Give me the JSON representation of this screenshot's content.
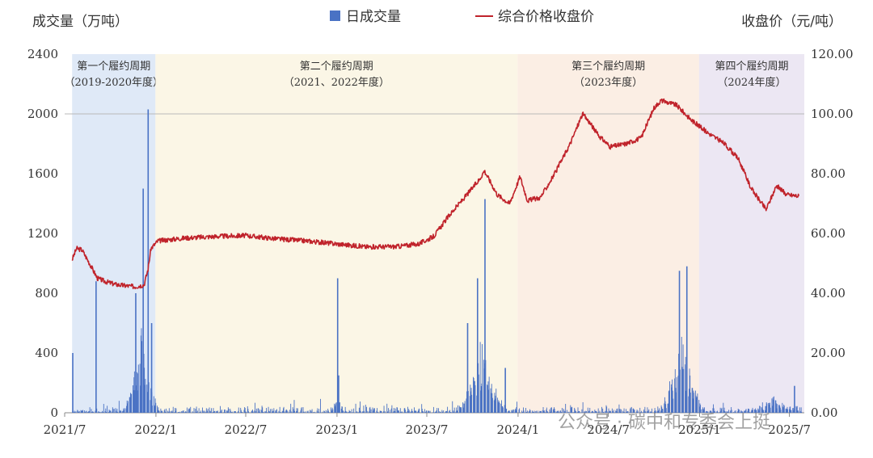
{
  "chart_data": {
    "type": "bar+line",
    "left_axis_title": "成交量（万吨）",
    "right_axis_title": "收盘价（元/吨）",
    "legend": {
      "bar_label": "日成交量",
      "line_label": "综合价格收盘价",
      "bar_color": "#4a72c4",
      "line_color": "#c0232b"
    },
    "x_ticks": [
      "2021/7",
      "2022/1",
      "2022/7",
      "2023/1",
      "2023/7",
      "2024/1",
      "2024/7",
      "2025/1",
      "2025/7"
    ],
    "y_left": {
      "min": 0,
      "max": 2400,
      "ticks": [
        0,
        400,
        800,
        1200,
        1600,
        2000,
        2400
      ]
    },
    "y_right": {
      "min": 0,
      "max": 120,
      "ticks": [
        "0.00",
        "20.00",
        "40.00",
        "60.00",
        "80.00",
        "100.00",
        "120.00"
      ]
    },
    "reference_line_right": 100,
    "periods": [
      {
        "line1": "第一个履约周期",
        "line2": "（2019-2020年度）",
        "start": "2021-07-16",
        "end": "2021-12-31",
        "color": "#dfe9f7"
      },
      {
        "line1": "第二个履约周期",
        "line2": "（2021、2022年度）",
        "start": "2021-12-31",
        "end": "2023-12-31",
        "color": "#fbf6e6"
      },
      {
        "line1": "第三个履约周期",
        "line2": "（2023年度）",
        "start": "2023-12-31",
        "end": "2024-12-31",
        "color": "#fbeee4"
      },
      {
        "line1": "第四个履约周期",
        "line2": "（2024年度）",
        "start": "2024-12-31",
        "end": "2025-07-31",
        "color": "#ece7f3"
      }
    ],
    "price_series": {
      "name": "综合价格收盘价",
      "points": [
        [
          "2021-07-16",
          51.2
        ],
        [
          "2021-07-25",
          55.0
        ],
        [
          "2021-08-05",
          54.5
        ],
        [
          "2021-08-20",
          50.0
        ],
        [
          "2021-09-05",
          45.0
        ],
        [
          "2021-09-20",
          44.0
        ],
        [
          "2021-10-10",
          43.0
        ],
        [
          "2021-11-01",
          42.5
        ],
        [
          "2021-11-20",
          42.2
        ],
        [
          "2021-12-08",
          42.8
        ],
        [
          "2021-12-16",
          48.0
        ],
        [
          "2021-12-22",
          55.0
        ],
        [
          "2022-01-05",
          57.5
        ],
        [
          "2022-02-01",
          58.0
        ],
        [
          "2022-03-01",
          58.5
        ],
        [
          "2022-05-01",
          59.0
        ],
        [
          "2022-07-01",
          59.3
        ],
        [
          "2022-09-01",
          58.2
        ],
        [
          "2022-11-01",
          57.5
        ],
        [
          "2023-01-01",
          56.5
        ],
        [
          "2023-03-01",
          55.5
        ],
        [
          "2023-05-01",
          55.6
        ],
        [
          "2023-06-15",
          56.5
        ],
        [
          "2023-07-15",
          59.0
        ],
        [
          "2023-08-15",
          66.0
        ],
        [
          "2023-09-15",
          72.0
        ],
        [
          "2023-10-15",
          78.0
        ],
        [
          "2023-10-25",
          81.0
        ],
        [
          "2023-11-20",
          73.0
        ],
        [
          "2023-12-15",
          70.0
        ],
        [
          "2024-01-05",
          79.0
        ],
        [
          "2024-01-20",
          71.0
        ],
        [
          "2024-02-15",
          72.0
        ],
        [
          "2024-03-15",
          80.0
        ],
        [
          "2024-04-15",
          90.0
        ],
        [
          "2024-05-10",
          100.0
        ],
        [
          "2024-05-25",
          97.0
        ],
        [
          "2024-06-10",
          93.0
        ],
        [
          "2024-07-05",
          89.0
        ],
        [
          "2024-08-05",
          90.0
        ],
        [
          "2024-09-05",
          92.0
        ],
        [
          "2024-10-01",
          102.0
        ],
        [
          "2024-10-15",
          104.5
        ],
        [
          "2024-11-15",
          103.0
        ],
        [
          "2024-12-15",
          98.0
        ],
        [
          "2025-01-15",
          94.0
        ],
        [
          "2025-02-20",
          90.0
        ],
        [
          "2025-03-20",
          85.0
        ],
        [
          "2025-04-15",
          75.0
        ],
        [
          "2025-05-15",
          68.0
        ],
        [
          "2025-06-05",
          76.0
        ],
        [
          "2025-06-25",
          73.0
        ],
        [
          "2025-07-20",
          72.5
        ]
      ]
    },
    "volume_spikes": [
      [
        "2021-07-16",
        400
      ],
      [
        "2021-09-01",
        880
      ],
      [
        "2021-11-20",
        800
      ],
      [
        "2021-12-05",
        1500
      ],
      [
        "2021-12-15",
        2030
      ],
      [
        "2021-12-22",
        600
      ],
      [
        "2023-01-01",
        900
      ],
      [
        "2023-01-03",
        250
      ],
      [
        "2023-10-25",
        1430
      ],
      [
        "2023-10-10",
        900
      ],
      [
        "2023-09-20",
        600
      ],
      [
        "2023-12-05",
        300
      ],
      [
        "2024-11-20",
        950
      ],
      [
        "2024-12-05",
        980
      ],
      [
        "2025-07-10",
        180
      ]
    ],
    "volume_clusters": [
      {
        "center": "2021-12-01",
        "spread_days": 45,
        "height": 420
      },
      {
        "center": "2023-01-01",
        "spread_days": 18,
        "height": 110
      },
      {
        "center": "2023-10-20",
        "spread_days": 60,
        "height": 420
      },
      {
        "center": "2024-11-25",
        "spread_days": 55,
        "height": 450
      },
      {
        "center": "2025-06-01",
        "spread_days": 70,
        "height": 70
      }
    ]
  },
  "watermark": "公众号 · 碳中和专委会上挺"
}
